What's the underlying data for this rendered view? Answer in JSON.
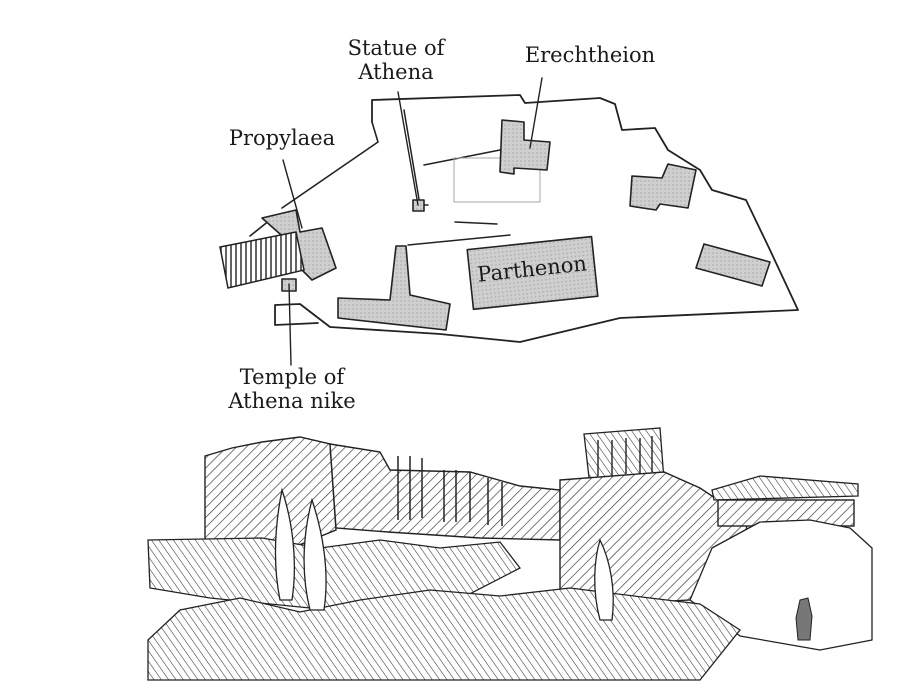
{
  "figure": {
    "labels": {
      "statue_line1": "Statue of",
      "statue_line2": "Athena",
      "erechtheion": "Erechtheion",
      "propylaea": "Propylaea",
      "parthenon": "Parthenon",
      "temple_line1": "Temple of",
      "temple_line2": "Athena nike"
    },
    "colors": {
      "ink": "#222222",
      "building_fill": "#c8c8c8",
      "background": "#ffffff"
    }
  }
}
